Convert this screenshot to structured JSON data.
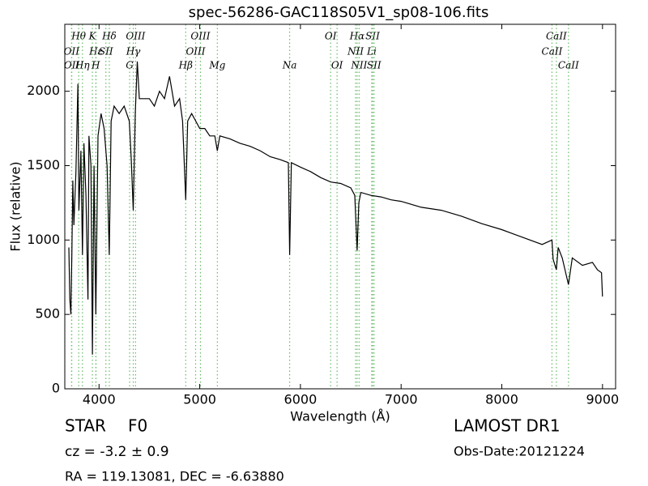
{
  "chart_data": {
    "type": "line",
    "title": "spec-56286-GAC118S05V1_sp08-106.fits",
    "xlabel": "Wavelength (Å)",
    "ylabel": "Flux (relative)",
    "xlim": [
      3660,
      9130
    ],
    "ylim": [
      0,
      2450
    ],
    "xticks": [
      4000,
      5000,
      6000,
      7000,
      8000,
      9000
    ],
    "yticks": [
      0,
      500,
      1000,
      1500,
      2000
    ],
    "color": "#000000",
    "line_color": "#66bb66",
    "x": [
      3700,
      3710,
      3720,
      3730,
      3740,
      3750,
      3770,
      3790,
      3800,
      3820,
      3835,
      3850,
      3870,
      3890,
      3900,
      3920,
      3934,
      3950,
      3968,
      3990,
      4020,
      4050,
      4080,
      4102,
      4120,
      4150,
      4200,
      4250,
      4300,
      4320,
      4340,
      4360,
      4380,
      4400,
      4450,
      4500,
      4550,
      4600,
      4650,
      4700,
      4750,
      4800,
      4830,
      4861,
      4880,
      4920,
      4960,
      5000,
      5050,
      5100,
      5150,
      5175,
      5200,
      5300,
      5400,
      5500,
      5600,
      5700,
      5800,
      5880,
      5893,
      5910,
      6000,
      6100,
      6200,
      6300,
      6400,
      6500,
      6540,
      6563,
      6580,
      6600,
      6700,
      6800,
      6900,
      7000,
      7200,
      7400,
      7600,
      7800,
      8000,
      8200,
      8400,
      8498,
      8510,
      8542,
      8560,
      8600,
      8662,
      8700,
      8800,
      8900,
      8950,
      8990,
      9000
    ],
    "values": [
      950,
      600,
      500,
      900,
      1400,
      1100,
      1450,
      2050,
      1200,
      1600,
      900,
      1650,
      1300,
      600,
      1700,
      1500,
      230,
      1500,
      500,
      1700,
      1850,
      1750,
      1500,
      900,
      1800,
      1900,
      1850,
      1900,
      1800,
      1550,
      1200,
      1850,
      2200,
      1950,
      1950,
      1950,
      1900,
      2000,
      1950,
      2100,
      1900,
      1950,
      1800,
      1270,
      1800,
      1850,
      1800,
      1750,
      1750,
      1700,
      1700,
      1600,
      1700,
      1680,
      1650,
      1630,
      1600,
      1560,
      1540,
      1520,
      900,
      1520,
      1490,
      1460,
      1420,
      1390,
      1380,
      1350,
      1300,
      930,
      1250,
      1320,
      1300,
      1290,
      1270,
      1260,
      1220,
      1200,
      1160,
      1110,
      1070,
      1020,
      970,
      1000,
      870,
      800,
      950,
      880,
      700,
      880,
      830,
      850,
      800,
      780,
      620
    ],
    "lines": [
      {
        "name": "Hθ",
        "x": 3798,
        "row": 1
      },
      {
        "name": "K",
        "x": 3934,
        "row": 1
      },
      {
        "name": "Hδ",
        "x": 4102,
        "row": 1
      },
      {
        "name": "OIII",
        "x": 4363,
        "row": 1
      },
      {
        "name": "OIII",
        "x": 5007,
        "row": 1
      },
      {
        "name": "OI",
        "x": 6300,
        "row": 1
      },
      {
        "name": "Hα",
        "x": 6563,
        "row": 1
      },
      {
        "name": "SII",
        "x": 6717,
        "row": 1
      },
      {
        "name": "CaII",
        "x": 8542,
        "row": 1
      },
      {
        "name": "OII",
        "x": 3727,
        "row": 2
      },
      {
        "name": "Hε",
        "x": 3970,
        "row": 2
      },
      {
        "name": "SII",
        "x": 4068,
        "row": 2
      },
      {
        "name": "Hγ",
        "x": 4340,
        "row": 2
      },
      {
        "name": "OIII",
        "x": 4959,
        "row": 2
      },
      {
        "name": "NII",
        "x": 6548,
        "row": 2
      },
      {
        "name": "Li",
        "x": 6708,
        "row": 2
      },
      {
        "name": "CaII",
        "x": 8498,
        "row": 2
      },
      {
        "name": "OII",
        "x": 3729,
        "row": 3
      },
      {
        "name": "Hη",
        "x": 3835,
        "row": 3
      },
      {
        "name": "H",
        "x": 3968,
        "row": 3
      },
      {
        "name": "G",
        "x": 4304,
        "row": 3
      },
      {
        "name": "Hβ",
        "x": 4861,
        "row": 3
      },
      {
        "name": "Mg",
        "x": 5175,
        "row": 3
      },
      {
        "name": "Na",
        "x": 5893,
        "row": 3
      },
      {
        "name": "OI",
        "x": 6364,
        "row": 3
      },
      {
        "name": "NII",
        "x": 6583,
        "row": 3
      },
      {
        "name": "SII",
        "x": 6731,
        "row": 3
      },
      {
        "name": "CaII",
        "x": 8662,
        "row": 3
      }
    ],
    "class": "STAR",
    "subclass": "F0",
    "redshift": "cz = -3.2 ± 0.9",
    "coords": "RA = 119.13081, DEC = -6.63880",
    "survey": "LAMOST DR1",
    "obs_date": "Obs-Date:20121224"
  }
}
